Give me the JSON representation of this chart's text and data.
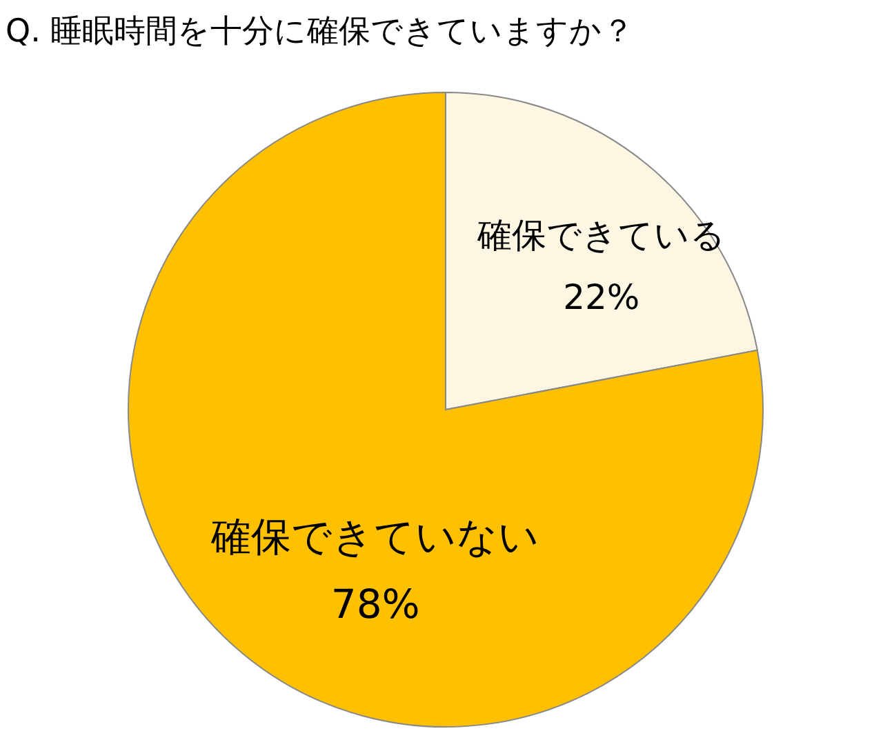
{
  "chart_data": {
    "type": "pie",
    "title": "Q. 睡眠時間を十分に確保できていますか？",
    "categories": [
      "確保できている",
      "確保できていない"
    ],
    "values": [
      22,
      78
    ],
    "colors": [
      "#fdf6e3",
      "#ffc000"
    ],
    "value_labels": [
      "22%",
      "78%"
    ]
  }
}
